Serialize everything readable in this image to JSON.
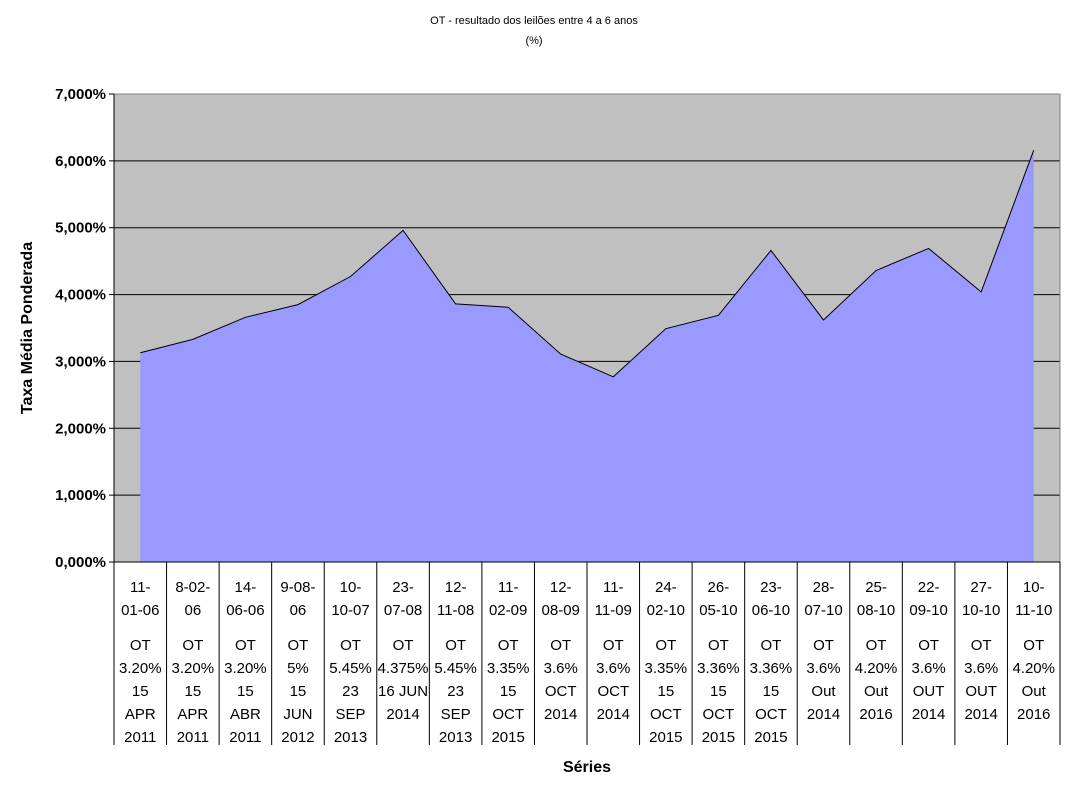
{
  "chart_data": {
    "type": "area",
    "title": "OT - resultado dos leilões entre 4 a 6 anos",
    "subtitle": "(%)",
    "xlabel": "Séries",
    "ylabel": "Taxa Média Ponderada",
    "ylim": [
      0,
      7
    ],
    "yticks": [
      "0,000%",
      "1,000%",
      "2,000%",
      "3,000%",
      "4,000%",
      "5,000%",
      "6,000%",
      "7,000%"
    ],
    "grid": true,
    "legend": "none",
    "colors": {
      "plot_bg": "#c0c0c0",
      "area_fill": "#9999ff",
      "line": "#000000"
    },
    "categories": [
      {
        "date": [
          "11-",
          "01-06"
        ],
        "series": [
          "OT",
          "3.20%",
          "15",
          "APR",
          "2011"
        ]
      },
      {
        "date": [
          "8-02-",
          "06"
        ],
        "series": [
          "OT",
          "3.20%",
          "15",
          "APR",
          "2011"
        ]
      },
      {
        "date": [
          "14-",
          "06-06"
        ],
        "series": [
          "OT",
          "3.20%",
          "15",
          "ABR",
          "2011"
        ]
      },
      {
        "date": [
          "9-08-",
          "06"
        ],
        "series": [
          "OT",
          "5%",
          "15",
          "JUN",
          "2012"
        ]
      },
      {
        "date": [
          "10-",
          "10-07"
        ],
        "series": [
          "OT",
          "5.45%",
          "23",
          "SEP",
          "2013"
        ]
      },
      {
        "date": [
          "23-",
          "07-08"
        ],
        "series": [
          "OT",
          "4.375%",
          "16 JUN",
          "2014"
        ]
      },
      {
        "date": [
          "12-",
          "11-08"
        ],
        "series": [
          "OT",
          "5.45%",
          "23",
          "SEP",
          "2013"
        ]
      },
      {
        "date": [
          "11-",
          "02-09"
        ],
        "series": [
          "OT",
          "3.35%",
          "15",
          "OCT",
          "2015"
        ]
      },
      {
        "date": [
          "12-",
          "08-09"
        ],
        "series": [
          "OT",
          "3.6%",
          "OCT",
          "2014"
        ]
      },
      {
        "date": [
          "11-",
          "11-09"
        ],
        "series": [
          "OT",
          "3.6%",
          "OCT",
          "2014"
        ]
      },
      {
        "date": [
          "24-",
          "02-10"
        ],
        "series": [
          "OT",
          "3.35%",
          "15",
          "OCT",
          "2015"
        ]
      },
      {
        "date": [
          "26-",
          "05-10"
        ],
        "series": [
          "OT",
          "3.36%",
          "15",
          "OCT",
          "2015"
        ]
      },
      {
        "date": [
          "23-",
          "06-10"
        ],
        "series": [
          "OT",
          "3.36%",
          "15",
          "OCT",
          "2015"
        ]
      },
      {
        "date": [
          "28-",
          "07-10"
        ],
        "series": [
          "OT",
          "3.6%",
          "Out",
          "2014"
        ]
      },
      {
        "date": [
          "25-",
          "08-10"
        ],
        "series": [
          "OT",
          "4.20%",
          "Out",
          "2016"
        ]
      },
      {
        "date": [
          "22-",
          "09-10"
        ],
        "series": [
          "OT",
          "3.6%",
          "OUT",
          "2014"
        ]
      },
      {
        "date": [
          "27-",
          "10-10"
        ],
        "series": [
          "OT",
          "3.6%",
          "OUT",
          "2014"
        ]
      },
      {
        "date": [
          "10-",
          "11-10"
        ],
        "series": [
          "OT",
          "4.20%",
          "Out",
          "2016"
        ]
      }
    ],
    "values": [
      3.13,
      3.33,
      3.66,
      3.85,
      4.27,
      4.96,
      3.86,
      3.81,
      3.11,
      2.77,
      3.49,
      3.69,
      4.66,
      3.62,
      4.36,
      4.69,
      4.04,
      6.16
    ]
  }
}
